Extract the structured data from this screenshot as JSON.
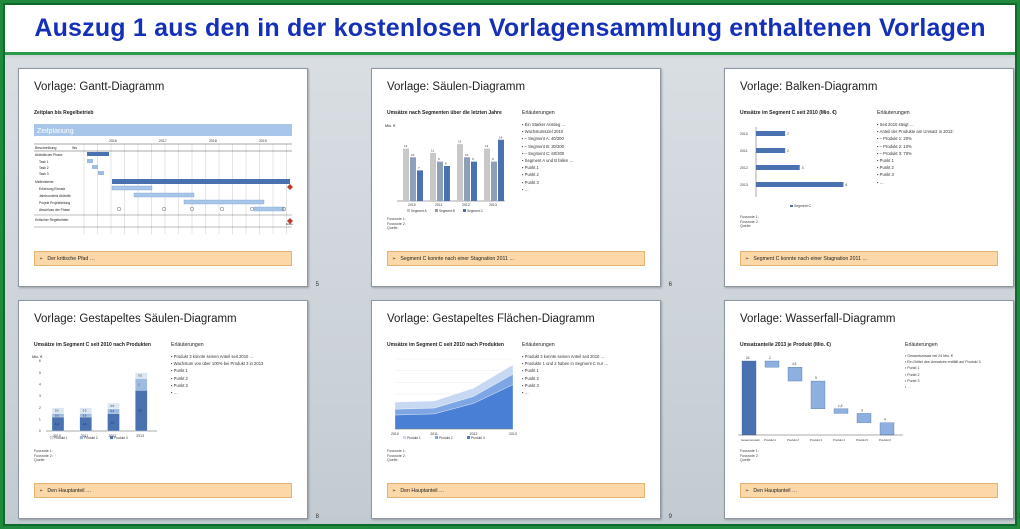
{
  "header": {
    "title": "Auszug 1 aus den in der kostenlosen Vorlagensammlung enthaltenen Vorlagen"
  },
  "slides": [
    {
      "title": "Vorlage: Gantt-Diagramm",
      "subtitle": "Zeitplan bis Regelbetrieb",
      "footer": "Der kritische Pfad …",
      "page": "5",
      "gantt": {
        "banner": "Zeitplanung",
        "year_labels": [
          "2016",
          "2017",
          "2018",
          "2019"
        ],
        "col_head_left": "Beschreibung",
        "col_head_dur": "Wo",
        "rows": [
          "Aktivität der Phase",
          "Task 1",
          "Task 2",
          "Task 3",
          "Meilensteine",
          "Erfahrung Einsatz",
          "Jahrhunderts Aktivität",
          "Projekt Projektteilung",
          "Abschluss der Phase",
          "Kritischer Regelbetrieb"
        ],
        "end_label": "Ende"
      }
    },
    {
      "title": "Vorlage: Säulen-Diagramm",
      "subtitle": "Umsätze nach Segmenten über die letzten Jahre",
      "notes_heading": "Erläuterungen",
      "notes": [
        "Ein Starker Anstieg …",
        "Wachstumsziel 2010",
        "– Segment A: 40/300",
        "– Segment B: 30/300",
        "– Segment C: 60/300",
        "Segment A und B fallen …",
        "Punkt 1",
        "Punkt 2",
        "Punkt 3",
        "…"
      ],
      "footer": "Segment C konnte nach einer Stagnation 2011 …",
      "page": "6",
      "source": "Fussnote 1:\nFussnote 2:\nQuelle:",
      "chart_data": {
        "type": "bar",
        "ylabel": "Mio. €",
        "categories": [
          "2010",
          "2011",
          "2012",
          "2013"
        ],
        "series": [
          {
            "name": "Segment A",
            "values": [
              12,
              11,
              13,
              12
            ]
          },
          {
            "name": "Segment B",
            "values": [
              10,
              9,
              10,
              9
            ]
          },
          {
            "name": "Segment C",
            "values": [
              7,
              8,
              9,
              14
            ]
          }
        ],
        "ylim": [
          0,
          16
        ],
        "colors": [
          "#c8c8c8",
          "#8ea0b8",
          "#4a72b0"
        ]
      }
    },
    {
      "title": "Vorlage: Balken-Diagramm",
      "subtitle": "Umsätze im Segment C seit 2010 (Mio. €)",
      "notes_heading": "Erläuterungen",
      "notes": [
        "Seit 2010 steigt …",
        "Anteil der Produkte am Umsatz in 2013:",
        "– Produkt 1: 20%",
        "– Produkt 2: 10%",
        "– Produkt 3: 70%",
        "Punkt 1",
        "Punkt 2",
        "Punkt 3",
        "…"
      ],
      "footer": "Segment C konnte nach einer Stagnation 2011 …",
      "page": "7",
      "source": "Fussnote 1:\nFussnote 2:\nQuelle:",
      "chart_data": {
        "type": "bar",
        "orientation": "horizontal",
        "categories": [
          "2010",
          "2011",
          "2012",
          "2013"
        ],
        "values": [
          2,
          2,
          3,
          6
        ],
        "legend": "Segment C",
        "xlim": [
          0,
          7
        ],
        "color": "#4a72b0"
      }
    },
    {
      "title": "Vorlage: Gestapeltes Säulen-Diagramm",
      "subtitle": "Umsätze im Segment C seit 2010 nach Produkten",
      "notes_heading": "Erläuterungen",
      "notes": [
        "Produkt 3 konnte seinen Anteil seit 2010 …",
        "Wachstum von über 100% bei Produkt 3 in 2013",
        "Punkt 1",
        "Punkt 2",
        "Punkt 3",
        "…"
      ],
      "footer": "Den Hauptanteil …",
      "page": "8",
      "source": "Fussnote 1:\nFussnote 2:\nQuelle:",
      "chart_data": {
        "type": "bar",
        "stacked": true,
        "ylabel": "Mio. €",
        "categories": [
          "2010",
          "2011",
          "2012",
          "2013"
        ],
        "series": [
          {
            "name": "Produkt 1",
            "values": [
              0.5,
              0.5,
              0.5,
              0.5
            ]
          },
          {
            "name": "Produkt 2",
            "values": [
              0.3,
              0.3,
              0.4,
              1.0
            ]
          },
          {
            "name": "Produkt 3",
            "values": [
              1.2,
              1.2,
              1.5,
              3.5
            ]
          }
        ],
        "ylim": [
          0,
          6
        ],
        "colors": [
          "#dce6f2",
          "#9fbbe0",
          "#4a72b0"
        ]
      }
    },
    {
      "title": "Vorlage: Gestapeltes Flächen-Diagramm",
      "subtitle": "Umsätze im Segment C seit 2010 nach Produkten",
      "notes_heading": "Erläuterungen",
      "notes": [
        "Produkt 3 konnte seinen Anteil seit 2010 …",
        "Produkte 1 und 2 haben in Segment C nur …",
        "Punkt 1",
        "Punkt 2",
        "Punkt 3",
        "…"
      ],
      "footer": "Den Hauptanteil …",
      "page": "9",
      "source": "Fussnote 1:\nFussnote 2:\nQuelle:",
      "chart_data": {
        "type": "area",
        "stacked": true,
        "categories": [
          "2010",
          "2011",
          "2012",
          "2013"
        ],
        "series": [
          {
            "name": "Produkt 3",
            "values": [
              1.2,
              1.3,
              2.2,
              3.8
            ]
          },
          {
            "name": "Produkt 2",
            "values": [
              0.5,
              0.5,
              0.6,
              0.9
            ]
          },
          {
            "name": "Produkt 1",
            "values": [
              0.6,
              0.6,
              0.7,
              0.8
            ]
          }
        ],
        "ylim": [
          0,
          6
        ],
        "colors": [
          "#4a7fd6",
          "#7ea6e4",
          "#c6d8f2"
        ]
      }
    },
    {
      "title": "Vorlage: Wasserfall-Diagramm",
      "subtitle": "Umsatzanteile 2013 je Produkt (Mio. €)",
      "notes_heading": "Erläuterungen",
      "notes": [
        "Gesamtumsatz bei 24 Mio. €",
        "Ein Drittel des Umsatzes entfällt auf Produkt 3",
        "Punkt 1",
        "Punkt 2",
        "Punkt 3",
        "…"
      ],
      "footer": "Den Hauptanteil …",
      "page": "10",
      "source": "Fussnote 1:\nFussnote 2:\nQuelle:",
      "chart_data": {
        "type": "bar",
        "waterfall": true,
        "categories": [
          "Gesamtumsatz",
          "Produkt 1",
          "Produkt 2",
          "Produkt 3",
          "Produkt 4",
          "Produkt 5",
          "Produkt 6"
        ],
        "labels": [
          "24",
          "2",
          "4,5",
          "9",
          "1,5",
          "3",
          "4"
        ],
        "values": [
          24,
          2,
          4.5,
          9,
          1.5,
          3,
          4
        ],
        "colors": [
          "#4a72b0",
          "#8eb0e0"
        ]
      }
    }
  ]
}
